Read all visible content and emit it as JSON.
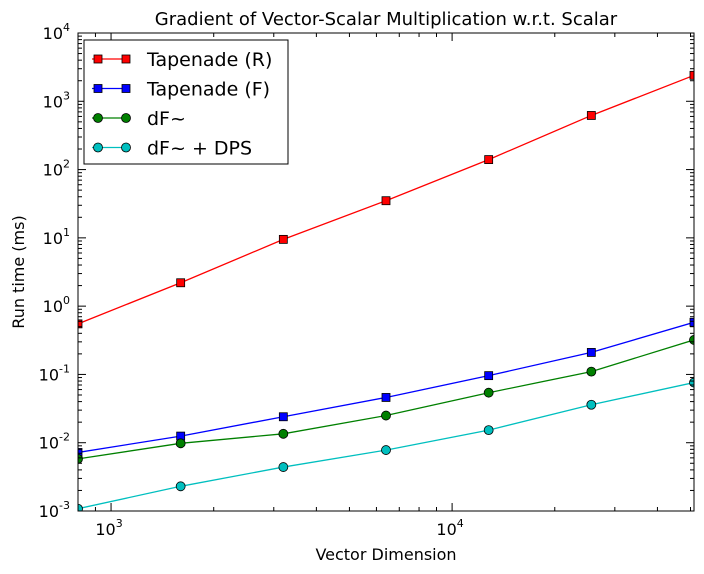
{
  "chart_data": {
    "type": "line",
    "title": "Gradient of Vector-Scalar Multiplication w.r.t. Scalar",
    "xlabel": "Vector Dimension",
    "ylabel": "Run time (ms)",
    "xscale": "log",
    "yscale": "log",
    "xlim": [
      800,
      51200
    ],
    "ylim": [
      0.001,
      10000
    ],
    "x_ticks": [
      {
        "base": "10",
        "exp": "3",
        "value": 1000
      },
      {
        "base": "10",
        "exp": "4",
        "value": 10000
      }
    ],
    "y_ticks": [
      {
        "base": "10",
        "exp": "-3",
        "value": 0.001
      },
      {
        "base": "10",
        "exp": "-2",
        "value": 0.01
      },
      {
        "base": "10",
        "exp": "-1",
        "value": 0.1
      },
      {
        "base": "10",
        "exp": "0",
        "value": 1
      },
      {
        "base": "10",
        "exp": "1",
        "value": 10
      },
      {
        "base": "10",
        "exp": "2",
        "value": 100
      },
      {
        "base": "10",
        "exp": "3",
        "value": 1000
      },
      {
        "base": "10",
        "exp": "4",
        "value": 10000
      }
    ],
    "legend_position": "top-left",
    "grid": false,
    "x": [
      800,
      1600,
      3200,
      6400,
      12800,
      25600,
      51200
    ],
    "series": [
      {
        "name": "Tapenade (R)",
        "color": "#ff0000",
        "marker": "square",
        "values": [
          0.55,
          2.2,
          9.5,
          35,
          140,
          620,
          2400
        ]
      },
      {
        "name": "Tapenade (F)",
        "color": "#0000ff",
        "marker": "square",
        "values": [
          0.0072,
          0.0125,
          0.024,
          0.046,
          0.096,
          0.21,
          0.58
        ]
      },
      {
        "name": "dF~",
        "color": "#008000",
        "marker": "circle",
        "values": [
          0.0058,
          0.0098,
          0.0135,
          0.025,
          0.054,
          0.11,
          0.32
        ]
      },
      {
        "name": "dF~ + DPS",
        "color": "#00bfbf",
        "marker": "circle",
        "values": [
          0.00108,
          0.0023,
          0.0044,
          0.0078,
          0.0153,
          0.036,
          0.076
        ]
      }
    ]
  }
}
